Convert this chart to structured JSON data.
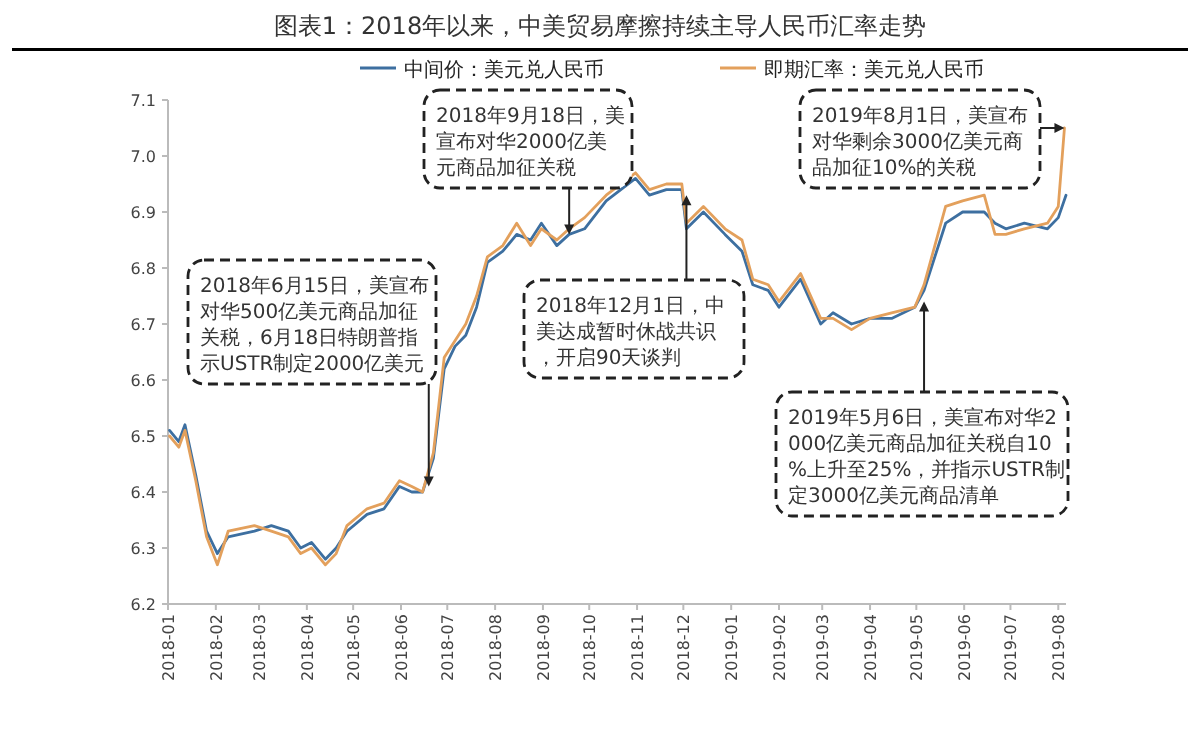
{
  "chart_data": {
    "type": "line",
    "title": "图表1：2018年以来，中美贸易摩擦持续主导人民币汇率走势",
    "legend": "top",
    "xlim": [
      "2018-01-01",
      "2019-08-06"
    ],
    "ylim": [
      6.2,
      7.1
    ],
    "xticks": [
      "2018-01",
      "2018-02",
      "2018-03",
      "2018-04",
      "2018-05",
      "2018-06",
      "2018-07",
      "2018-08",
      "2018-09",
      "2018-10",
      "2018-11",
      "2018-12",
      "2019-01",
      "2019-02",
      "2019-03",
      "2019-04",
      "2019-05",
      "2019-06",
      "2019-07",
      "2019-08"
    ],
    "yticks": [
      6.2,
      6.3,
      6.4,
      6.5,
      6.6,
      6.7,
      6.8,
      6.9,
      {
        "value": 7,
        "label": "7.0"
      },
      7.1
    ],
    "series": [
      {
        "name": "中间价：美元兑人民币",
        "color": "#3d6fa0",
        "x": [
          "2018-01-02",
          "2018-01-08",
          "2018-01-12",
          "2018-01-19",
          "2018-01-26",
          "2018-02-02",
          "2018-02-09",
          "2018-02-26",
          "2018-03-09",
          "2018-03-20",
          "2018-03-28",
          "2018-04-04",
          "2018-04-13",
          "2018-04-20",
          "2018-04-27",
          "2018-05-10",
          "2018-05-21",
          "2018-05-31",
          "2018-06-08",
          "2018-06-15",
          "2018-06-22",
          "2018-06-29",
          "2018-07-06",
          "2018-07-13",
          "2018-07-20",
          "2018-07-27",
          "2018-08-06",
          "2018-08-15",
          "2018-08-24",
          "2018-08-31",
          "2018-09-10",
          "2018-09-18",
          "2018-09-28",
          "2018-10-12",
          "2018-10-31",
          "2018-11-09",
          "2018-11-20",
          "2018-11-30",
          "2018-12-03",
          "2018-12-14",
          "2018-12-28",
          "2019-01-08",
          "2019-01-15",
          "2019-01-25",
          "2019-02-01",
          "2019-02-15",
          "2019-02-28",
          "2019-03-08",
          "2019-03-20",
          "2019-04-01",
          "2019-04-15",
          "2019-04-30",
          "2019-05-06",
          "2019-05-13",
          "2019-05-20",
          "2019-05-31",
          "2019-06-14",
          "2019-06-21",
          "2019-06-28",
          "2019-07-10",
          "2019-07-25",
          "2019-08-01",
          "2019-08-06"
        ],
        "values": [
          6.51,
          6.49,
          6.52,
          6.43,
          6.33,
          6.29,
          6.32,
          6.33,
          6.34,
          6.33,
          6.3,
          6.31,
          6.28,
          6.3,
          6.33,
          6.36,
          6.37,
          6.41,
          6.4,
          6.4,
          6.46,
          6.62,
          6.66,
          6.68,
          6.73,
          6.81,
          6.83,
          6.86,
          6.85,
          6.88,
          6.84,
          6.86,
          6.87,
          6.92,
          6.96,
          6.93,
          6.94,
          6.94,
          6.87,
          6.9,
          6.86,
          6.83,
          6.77,
          6.76,
          6.73,
          6.78,
          6.7,
          6.72,
          6.7,
          6.71,
          6.71,
          6.73,
          6.76,
          6.82,
          6.88,
          6.9,
          6.9,
          6.88,
          6.87,
          6.88,
          6.87,
          6.89,
          6.93
        ]
      },
      {
        "name": "即期汇率：美元兑人民币",
        "color": "#e3a05c",
        "x": [
          "2018-01-02",
          "2018-01-08",
          "2018-01-12",
          "2018-01-19",
          "2018-01-26",
          "2018-02-02",
          "2018-02-09",
          "2018-02-26",
          "2018-03-09",
          "2018-03-20",
          "2018-03-28",
          "2018-04-04",
          "2018-04-13",
          "2018-04-20",
          "2018-04-27",
          "2018-05-10",
          "2018-05-21",
          "2018-05-31",
          "2018-06-08",
          "2018-06-15",
          "2018-06-22",
          "2018-06-29",
          "2018-07-06",
          "2018-07-13",
          "2018-07-20",
          "2018-07-27",
          "2018-08-06",
          "2018-08-15",
          "2018-08-24",
          "2018-08-31",
          "2018-09-10",
          "2018-09-18",
          "2018-09-28",
          "2018-10-12",
          "2018-10-31",
          "2018-11-09",
          "2018-11-20",
          "2018-11-30",
          "2018-12-03",
          "2018-12-14",
          "2018-12-28",
          "2019-01-08",
          "2019-01-15",
          "2019-01-25",
          "2019-02-01",
          "2019-02-15",
          "2019-02-28",
          "2019-03-08",
          "2019-03-20",
          "2019-04-01",
          "2019-04-15",
          "2019-04-30",
          "2019-05-06",
          "2019-05-13",
          "2019-05-20",
          "2019-05-31",
          "2019-06-14",
          "2019-06-21",
          "2019-06-28",
          "2019-07-10",
          "2019-07-25",
          "2019-08-01",
          "2019-08-05"
        ],
        "values": [
          6.5,
          6.48,
          6.51,
          6.42,
          6.32,
          6.27,
          6.33,
          6.34,
          6.33,
          6.32,
          6.29,
          6.3,
          6.27,
          6.29,
          6.34,
          6.37,
          6.38,
          6.42,
          6.41,
          6.4,
          6.47,
          6.64,
          6.67,
          6.7,
          6.75,
          6.82,
          6.84,
          6.88,
          6.84,
          6.87,
          6.85,
          6.87,
          6.89,
          6.93,
          6.97,
          6.94,
          6.95,
          6.95,
          6.88,
          6.91,
          6.87,
          6.85,
          6.78,
          6.77,
          6.74,
          6.79,
          6.71,
          6.71,
          6.69,
          6.71,
          6.72,
          6.73,
          6.77,
          6.84,
          6.91,
          6.92,
          6.93,
          6.86,
          6.86,
          6.87,
          6.88,
          6.91,
          7.05
        ]
      }
    ],
    "annotations": [
      {
        "text": "2018年6月15日，美宣布对华500亿美元商品加征关税，6月18日特朗普指示USTR制定2000亿美元",
        "x": "2018-06-19",
        "y": 6.41
      },
      {
        "text": "2018年9月18日，美宣布对华2000亿美元商品加征关税",
        "x": "2018-09-18",
        "y": 6.86
      },
      {
        "text": "2018年12月1日，中美达成暂时休战共识，开启90天谈判",
        "x": "2018-12-03",
        "y": 6.93
      },
      {
        "text": "2019年5月6日，美宣布对华2000亿美元商品加征关税自10%上升至25%，并指示USTR制定3000亿美元商品清单",
        "x": "2019-05-06",
        "y": 6.74
      },
      {
        "text": "2019年8月1日，美宣布对华剩余3000亿美元商品加征10%的关税",
        "x": "2019-08-05",
        "y": 7.05
      }
    ]
  }
}
